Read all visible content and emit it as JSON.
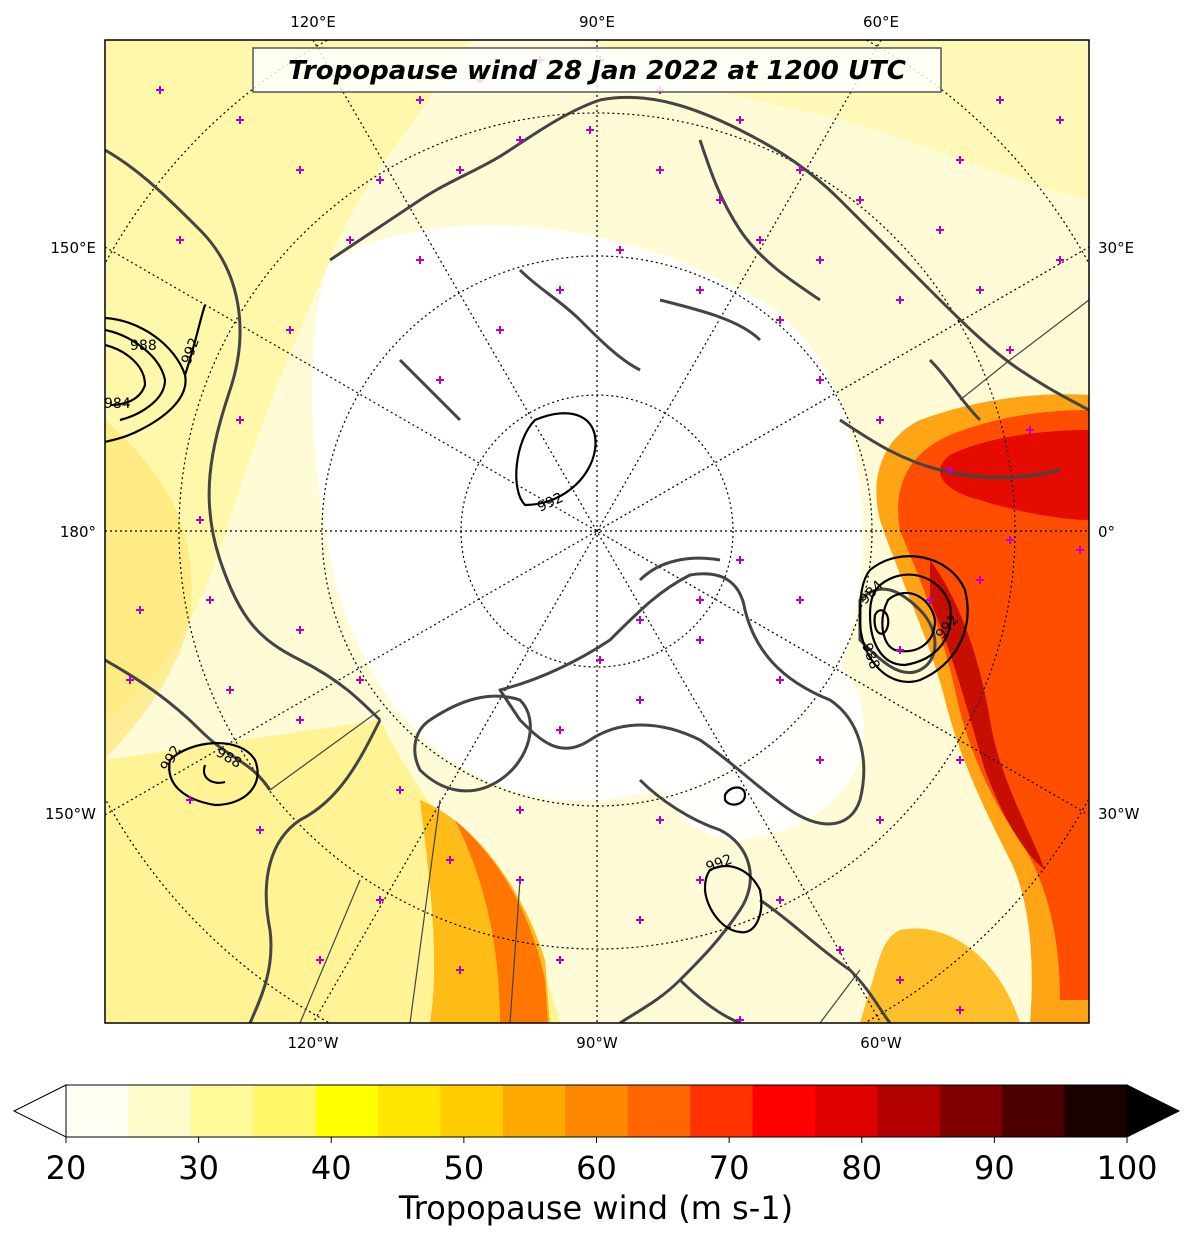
{
  "title": "Tropopause wind 28 Jan 2022 at 1200 UTC",
  "colorbar": {
    "label": "Tropopause wind (m s-1)",
    "ticks": [
      "20",
      "30",
      "40",
      "50",
      "60",
      "70",
      "80",
      "90",
      "100"
    ],
    "min": 20,
    "max": 100,
    "colors": [
      "#fffef2",
      "#fffccc",
      "#fffa99",
      "#fff766",
      "#ffff00",
      "#ffe600",
      "#ffcc00",
      "#ffaa00",
      "#ff8800",
      "#ff6600",
      "#ff3300",
      "#ff0000",
      "#e00000",
      "#b30000",
      "#800000",
      "#4d0000",
      "#1a0000"
    ]
  },
  "graticule": {
    "top": [
      "120°E",
      "90°E",
      "60°E"
    ],
    "bottom": [
      "120°W",
      "90°W",
      "60°W"
    ],
    "left": [
      "150°E",
      "180°",
      "150°W"
    ],
    "right": [
      "30°E",
      "0°",
      "30°W"
    ]
  },
  "contour_labels": [
    "988",
    "992",
    "984",
    "992",
    "992",
    "984",
    "988",
    "992",
    "992",
    "988",
    "992"
  ]
}
